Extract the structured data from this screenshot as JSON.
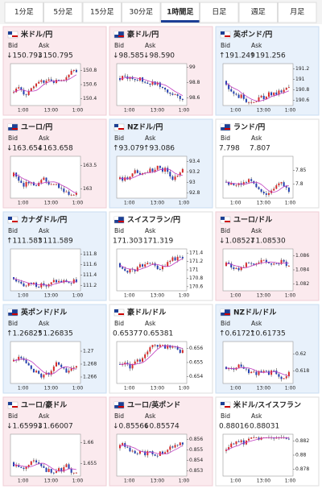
{
  "tabs": {
    "items": [
      "1分足",
      "5分足",
      "15分足",
      "30分足",
      "1時間足",
      "日足",
      "週足",
      "月足"
    ],
    "active": 4
  },
  "cards": [
    {
      "name": "米ドル/円",
      "bid_label": "Bid",
      "ask_label": "Ask",
      "bid": "↓150.793",
      "ask": "↓150.795",
      "trend": "down",
      "ylim": [
        150.3,
        150.9
      ],
      "yticks": [
        150.8,
        150.6,
        150.4
      ],
      "xticks": [
        "1:00",
        "13:00",
        "1:00"
      ]
    },
    {
      "name": "豪ドル/円",
      "bid_label": "Bid",
      "ask_label": "Ask",
      "bid": "↓98.585",
      "ask": "↓98.590",
      "trend": "down",
      "ylim": [
        98.5,
        99.05
      ],
      "yticks": [
        99,
        98.8,
        98.6
      ],
      "xticks": [
        "1:00",
        "13:00",
        "1:00"
      ]
    },
    {
      "name": "英ポンド/円",
      "bid_label": "Bid",
      "ask_label": "Ask",
      "bid": "↑191.249",
      "ask": "↑191.256",
      "trend": "up",
      "ylim": [
        190.5,
        191.3
      ],
      "yticks": [
        191.2,
        191,
        190.8,
        190.6
      ],
      "xticks": [
        "1:00",
        "13:00",
        "1:00"
      ]
    },
    {
      "name": "ユーロ/円",
      "bid_label": "Bid",
      "ask_label": "Ask",
      "bid": "↓163.654",
      "ask": "↓163.658",
      "trend": "down",
      "ylim": [
        162.8,
        163.7
      ],
      "yticks": [
        163.5,
        163
      ],
      "xticks": [
        "1:00",
        "13:00",
        "1:00"
      ]
    },
    {
      "name": "NZドル/円",
      "bid_label": "Bid",
      "ask_label": "Ask",
      "bid": "↑93.079",
      "ask": "↑93.086",
      "trend": "up",
      "ylim": [
        92.7,
        93.5
      ],
      "yticks": [
        93.4,
        93.2,
        93,
        92.8
      ],
      "xticks": [
        "1:00",
        "13:00",
        "1:00"
      ]
    },
    {
      "name": "ランド/円",
      "bid_label": "Bid",
      "ask_label": "Ask",
      "bid": "7.798",
      "ask": "7.807",
      "trend": "flat",
      "ylim": [
        7.75,
        7.9
      ],
      "yticks": [
        7.85,
        7.8
      ],
      "xticks": [
        "1:00",
        "13:00",
        "1:00"
      ]
    },
    {
      "name": "カナダドル/円",
      "bid_label": "Bid",
      "ask_label": "Ask",
      "bid": "↑111.583",
      "ask": "↑111.589",
      "trend": "up",
      "ylim": [
        111.1,
        111.9
      ],
      "yticks": [
        111.8,
        111.6,
        111.4,
        111.2
      ],
      "xticks": [
        "1:00",
        "13:00",
        "1:00"
      ]
    },
    {
      "name": "スイスフラン/円",
      "bid_label": "Bid",
      "ask_label": "Ask",
      "bid": "171.303",
      "ask": "171.319",
      "trend": "flat",
      "ylim": [
        170.5,
        171.5
      ],
      "yticks": [
        171.4,
        171.2,
        171,
        170.8,
        170.6
      ],
      "xticks": [
        "1:00",
        "13:00",
        "1:00"
      ]
    },
    {
      "name": "ユーロ/ドル",
      "bid_label": "Bid",
      "ask_label": "Ask",
      "bid": "↓1.08527",
      "ask": "↓1.08530",
      "trend": "down",
      "ylim": [
        1.081,
        1.087
      ],
      "yticks": [
        1.086,
        1.084,
        1.082
      ],
      "xticks": [
        "1:00",
        "13:00",
        "1:00"
      ]
    },
    {
      "name": "英ポンド/ドル",
      "bid_label": "Bid",
      "ask_label": "Ask",
      "bid": "↑1.26825",
      "ask": "↑1.26835",
      "trend": "up",
      "ylim": [
        1.265,
        1.2715
      ],
      "yticks": [
        1.27,
        1.268,
        1.266
      ],
      "xticks": [
        "1:00",
        "13:00",
        "1:00"
      ]
    },
    {
      "name": "豪ドル/ドル",
      "bid_label": "Bid",
      "ask_label": "Ask",
      "bid": "0.65377",
      "ask": "0.65381",
      "trend": "flat",
      "ylim": [
        0.6535,
        0.6565
      ],
      "yticks": [
        0.656,
        0.655,
        0.654
      ],
      "xticks": [
        "1:00",
        "13:00",
        "1:00"
      ]
    },
    {
      "name": "NZドル/ドル",
      "bid_label": "Bid",
      "ask_label": "Ask",
      "bid": "↑0.61721",
      "ask": "↑0.61735",
      "trend": "up",
      "ylim": [
        0.6165,
        0.6215
      ],
      "yticks": [
        0.62,
        0.618
      ],
      "xticks": [
        "1:00",
        "13:00",
        "1:00"
      ]
    },
    {
      "name": "ユーロ/豪ドル",
      "bid_label": "Bid",
      "ask_label": "Ask",
      "bid": "↓1.65993",
      "ask": "↓1.66007",
      "trend": "down",
      "ylim": [
        1.652,
        1.662
      ],
      "yticks": [
        1.66,
        1.655
      ],
      "xticks": [
        "1:00",
        "13:00",
        "1:00"
      ]
    },
    {
      "name": "ユーロ/英ポンド",
      "bid_label": "Bid",
      "ask_label": "Ask",
      "bid": "↓0.85566",
      "ask": "↓0.85574",
      "trend": "down",
      "ylim": [
        0.8525,
        0.8565
      ],
      "yticks": [
        0.856,
        0.855,
        0.854,
        0.853
      ],
      "xticks": [
        "1:00",
        "13:00",
        "1:00"
      ]
    },
    {
      "name": "米ドル/スイスフラン",
      "bid_label": "Bid",
      "ask_label": "Ask",
      "bid": "0.88016",
      "ask": "0.88031",
      "trend": "flat",
      "ylim": [
        0.877,
        0.883
      ],
      "yticks": [
        0.882,
        0.88,
        0.878
      ],
      "xticks": [
        "1:00",
        "13:00",
        "1:00"
      ]
    }
  ]
}
